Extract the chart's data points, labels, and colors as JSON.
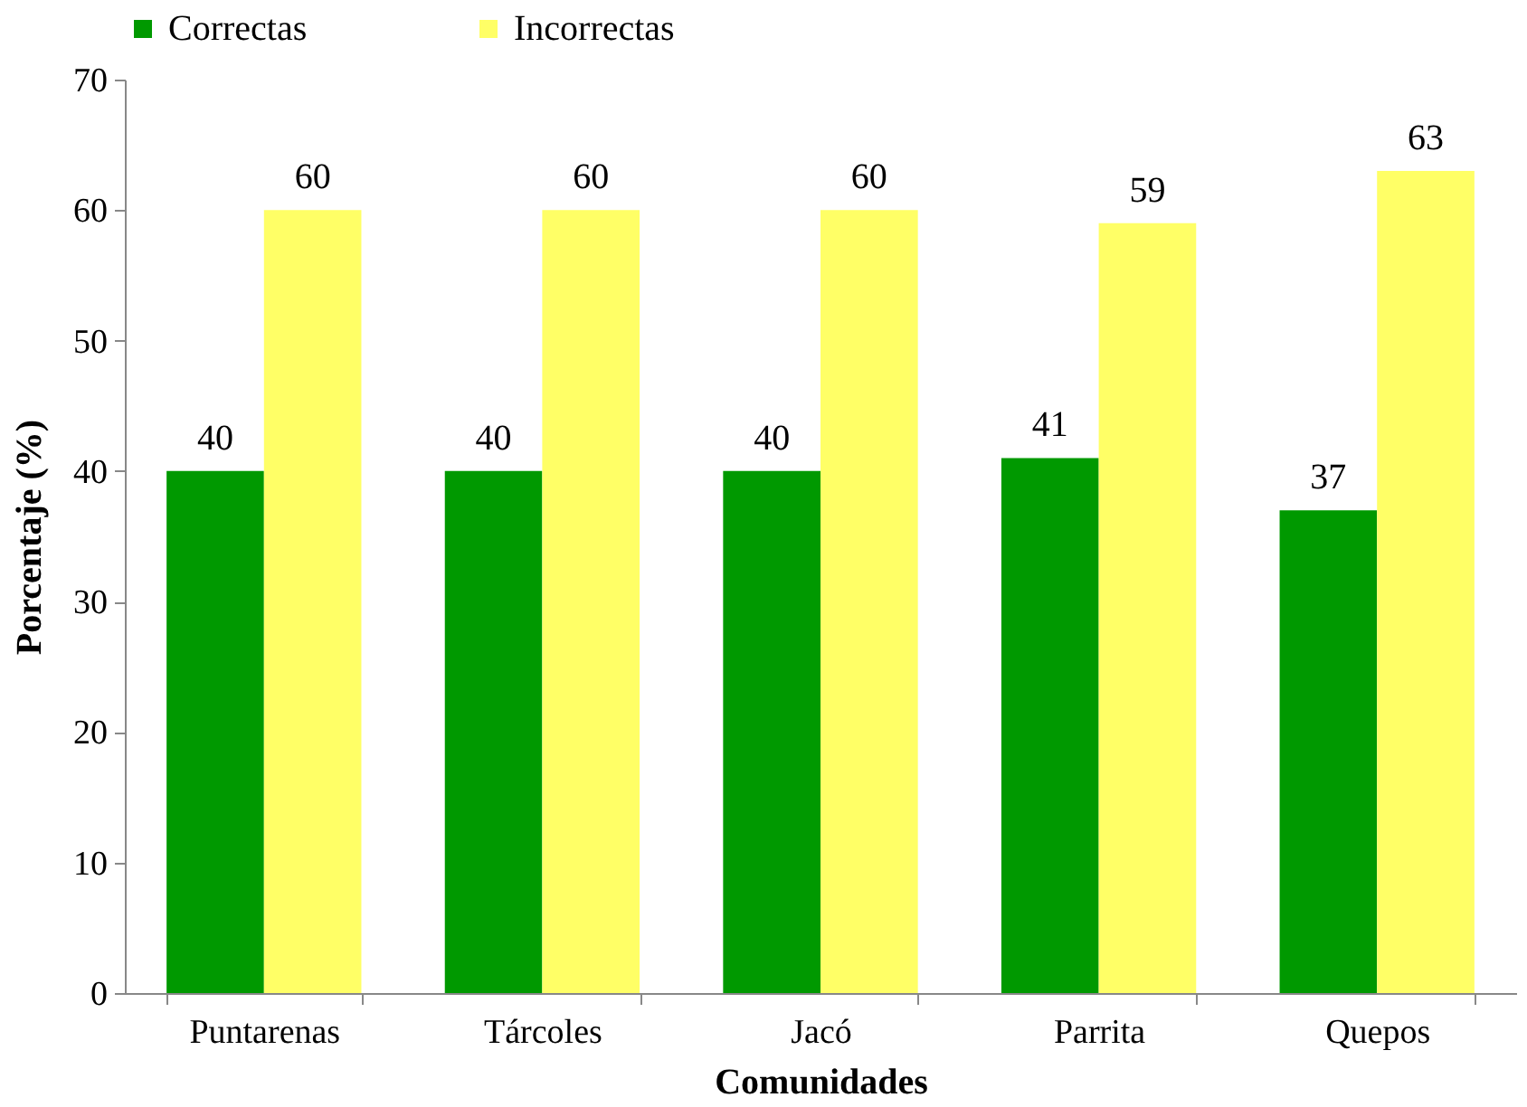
{
  "chart_data": {
    "type": "bar",
    "xlabel": "Comunidades",
    "ylabel": "Porcentaje (%)",
    "categories": [
      "Puntarenas",
      "Tárcoles",
      "Jacó",
      "Parrita",
      "Quepos"
    ],
    "series": [
      {
        "name": "Correctas",
        "color": "#009900",
        "values": [
          40,
          40,
          40,
          41,
          37
        ]
      },
      {
        "name": "Incorrectas",
        "color": "#ffff66",
        "values": [
          60,
          60,
          60,
          59,
          63
        ]
      }
    ],
    "ylim": [
      0,
      70
    ],
    "yticks": [
      0,
      10,
      20,
      30,
      40,
      50,
      60,
      70
    ],
    "data_labels": true,
    "legend": "top"
  }
}
